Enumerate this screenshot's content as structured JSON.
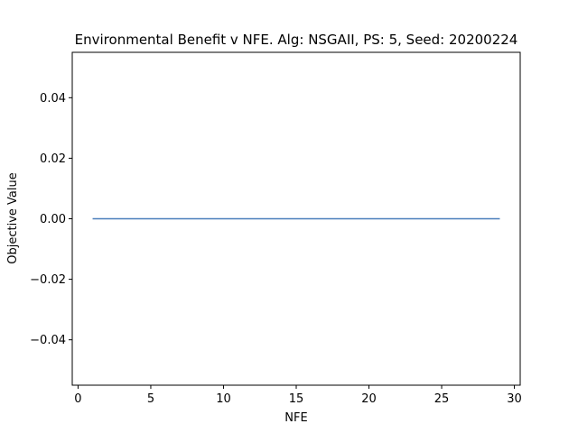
{
  "chart_data": {
    "type": "line",
    "title": "Environmental Benefit v NFE. Alg: NSGAII, PS: 5, Seed: 20200224",
    "xlabel": "NFE",
    "ylabel": "Objective Value",
    "xlim": [
      -0.4,
      30.4
    ],
    "ylim": [
      -0.055,
      0.055
    ],
    "xticks": [
      0,
      5,
      10,
      15,
      20,
      25,
      30
    ],
    "xtick_labels": [
      "0",
      "5",
      "10",
      "15",
      "20",
      "25",
      "30"
    ],
    "yticks": [
      -0.04,
      -0.02,
      0.0,
      0.02,
      0.04
    ],
    "ytick_labels": [
      "−0.04",
      "−0.02",
      "0.00",
      "0.02",
      "0.04"
    ],
    "grid": false,
    "series": [
      {
        "color": "#4a7ebb",
        "x": [
          1,
          29
        ],
        "y": [
          0,
          0
        ]
      }
    ]
  }
}
